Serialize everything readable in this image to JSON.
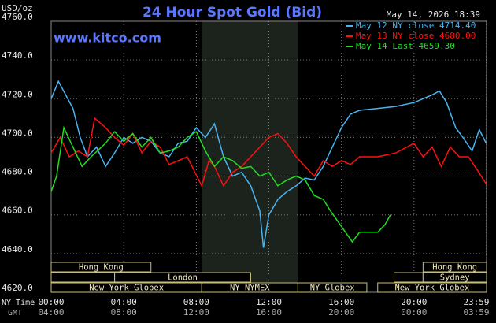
{
  "chart_data": {
    "type": "line",
    "title": "24 Hour Spot Gold (Bid)",
    "site": "www.kitco.com",
    "timestamp": "May 14, 2026 18:39",
    "y_label": "USD/oz",
    "x_label": "NY Time",
    "x2_label": "GMT",
    "grid": true,
    "legend": "top-right",
    "xlim": [
      0,
      24
    ],
    "xticks": [
      {
        "value": 0,
        "label": "00:00"
      },
      {
        "value": 4,
        "label": "04:00"
      },
      {
        "value": 8,
        "label": "08:00"
      },
      {
        "value": 12,
        "label": "12:00"
      },
      {
        "value": 16,
        "label": "16:00"
      },
      {
        "value": 20,
        "label": "20:00"
      },
      {
        "value": 23.98,
        "label": "23:59"
      }
    ],
    "x2ticklabels": [
      "04:00",
      "08:00",
      "12:00",
      "16:00",
      "20:00",
      "00:00",
      "03:59"
    ],
    "ylim": [
      4620,
      4760
    ],
    "yticks": [
      {
        "value": 4620,
        "label": "4620.0"
      },
      {
        "value": 4640,
        "label": "4640.0"
      },
      {
        "value": 4660,
        "label": "4660.0"
      },
      {
        "value": 4680,
        "label": "4680.0"
      },
      {
        "value": 4700,
        "label": "4700.0"
      },
      {
        "value": 4720,
        "label": "4720.0"
      },
      {
        "value": 4740,
        "label": "4740.0"
      },
      {
        "value": 4760,
        "label": "4760.0"
      }
    ],
    "sessions": [
      {
        "label": "Hong Kong",
        "start": 0,
        "end": 5.5,
        "row": 0
      },
      {
        "label": null,
        "start": 0,
        "end": 3.5,
        "row": 1
      },
      {
        "label": "London",
        "start": 3.5,
        "end": 11,
        "row": 1
      },
      {
        "label": "New York Globex",
        "start": 0,
        "end": 8.3,
        "row": 2
      },
      {
        "label": "NY NYMEX",
        "start": 8.3,
        "end": 13.6,
        "row": 2,
        "shaded": true
      },
      {
        "label": "NY Globex",
        "start": 13.6,
        "end": 17.4,
        "row": 2
      },
      {
        "label": "Hong Kong",
        "start": 20.5,
        "end": 24,
        "row": 0
      },
      {
        "label": null,
        "start": 18.9,
        "end": 20.5,
        "row": 1
      },
      {
        "label": "Sydney",
        "start": 20.5,
        "end": 24,
        "row": 1
      },
      {
        "label": "New York Globex",
        "start": 18,
        "end": 24,
        "row": 2
      }
    ],
    "series": [
      {
        "name": "May 12 NY close 4714.40",
        "color": "#48b4f0",
        "x": [
          0,
          0.4,
          0.8,
          1.2,
          1.6,
          2.0,
          2.5,
          3.0,
          3.5,
          4.0,
          4.5,
          5.0,
          5.5,
          6.0,
          6.5,
          7.0,
          7.5,
          8.0,
          8.5,
          9.0,
          9.5,
          10.0,
          10.5,
          11.0,
          11.5,
          11.7,
          12.0,
          12.5,
          13.0,
          13.5,
          14.0,
          14.5,
          15.0,
          15.5,
          16.0,
          16.5,
          17.0,
          18,
          19,
          20,
          21,
          21.4,
          21.8,
          22.3,
          22.7,
          23.2,
          23.6,
          23.98
        ],
        "values": [
          4720,
          4729,
          4722,
          4715,
          4700,
          4690,
          4695,
          4685,
          4692,
          4700,
          4697,
          4700,
          4698,
          4692,
          4690,
          4697,
          4698,
          4705,
          4700,
          4707,
          4690,
          4680,
          4682,
          4675,
          4662,
          4643,
          4660,
          4668,
          4672,
          4675,
          4679,
          4678,
          4685,
          4695,
          4705,
          4712,
          4714,
          4715,
          4716,
          4718,
          4722,
          4724,
          4718,
          4705,
          4700,
          4693,
          4704,
          4697
        ]
      },
      {
        "name": "May 13 NY close 4680.00",
        "color": "#ff1010",
        "x": [
          0,
          0.5,
          1.0,
          1.5,
          2,
          2.4,
          3,
          3.5,
          4,
          4.5,
          5,
          5.5,
          6,
          6.5,
          7,
          7.5,
          8.3,
          8.7,
          9,
          9.5,
          10,
          10.5,
          11,
          11.5,
          12,
          12.5,
          13,
          13.5,
          14,
          14.5,
          15,
          15.5,
          16,
          16.5,
          17,
          18,
          19,
          20,
          20.5,
          21,
          21.5,
          22,
          22.5,
          23,
          23.5,
          23.98
        ],
        "values": [
          4692,
          4700,
          4690,
          4693,
          4690,
          4710,
          4705,
          4700,
          4696,
          4702,
          4692,
          4698,
          4695,
          4686,
          4688,
          4690,
          4675,
          4688,
          4685,
          4675,
          4682,
          4685,
          4690,
          4695,
          4700,
          4702,
          4697,
          4690,
          4685,
          4680,
          4688,
          4685,
          4688,
          4686,
          4690,
          4690,
          4692,
          4697,
          4690,
          4695,
          4685,
          4695,
          4690,
          4690,
          4683,
          4676
        ]
      },
      {
        "name": "May 14 Last 4659.30",
        "color": "#22dd22",
        "x": [
          0,
          0.3,
          0.7,
          1.2,
          1.7,
          2.2,
          3,
          3.5,
          4,
          4.5,
          5,
          5.5,
          6,
          6.5,
          7,
          7.5,
          8,
          8.5,
          9,
          9.5,
          10,
          10.5,
          11,
          11.5,
          12,
          12.5,
          13,
          13.5,
          14,
          14.5,
          15,
          15.4,
          16.3,
          16.6,
          17.0,
          18.0,
          18.4,
          18.7
        ],
        "values": [
          4672,
          4680,
          4705,
          4695,
          4685,
          4690,
          4697,
          4703,
          4698,
          4702,
          4695,
          4700,
          4692,
          4693,
          4695,
          4700,
          4703,
          4693,
          4685,
          4690,
          4688,
          4684,
          4685,
          4680,
          4682,
          4675,
          4678,
          4680,
          4678,
          4670,
          4668,
          4662,
          4650,
          4646,
          4651,
          4651,
          4655,
          4660
        ]
      }
    ]
  }
}
